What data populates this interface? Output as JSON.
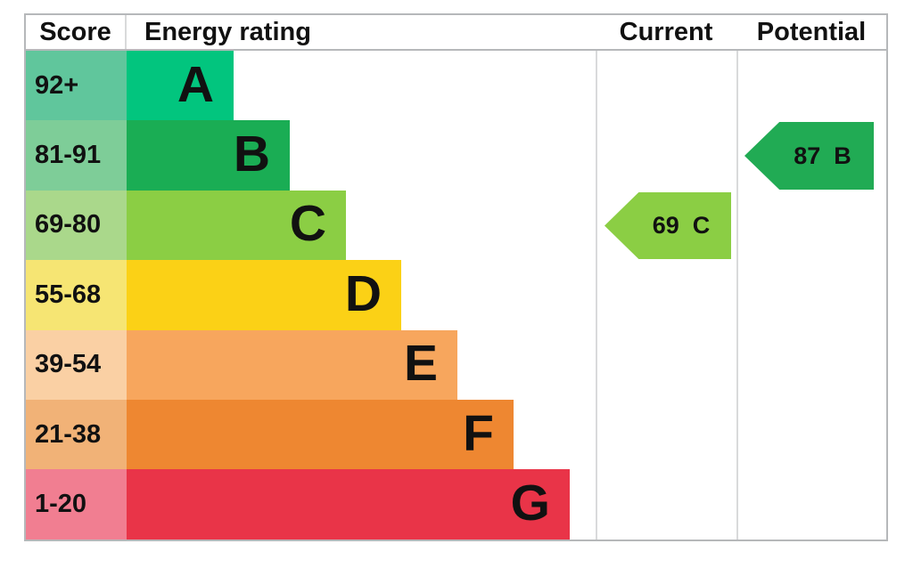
{
  "header": {
    "score": "Score",
    "energy_rating": "Energy rating",
    "current": "Current",
    "potential": "Potential"
  },
  "rows": [
    {
      "score": "92+",
      "letter": "A",
      "cell_color": "#60c69c",
      "band_color": "#02c57e",
      "band_width": 120
    },
    {
      "score": "81-91",
      "letter": "B",
      "cell_color": "#7ecd98",
      "band_color": "#1aad54",
      "band_width": 183
    },
    {
      "score": "69-80",
      "letter": "C",
      "cell_color": "#aad88b",
      "band_color": "#8bce44",
      "band_width": 246
    },
    {
      "score": "55-68",
      "letter": "D",
      "cell_color": "#f6e573",
      "band_color": "#fbd116",
      "band_width": 308
    },
    {
      "score": "39-54",
      "letter": "E",
      "cell_color": "#fad0a4",
      "band_color": "#f7a65d",
      "band_width": 371
    },
    {
      "score": "21-38",
      "letter": "F",
      "cell_color": "#f1b277",
      "band_color": "#ee8731",
      "band_width": 434
    },
    {
      "score": "1-20",
      "letter": "G",
      "cell_color": "#f17e91",
      "band_color": "#e93448",
      "band_width": 497
    }
  ],
  "current": {
    "value": "69",
    "letter": "C",
    "color": "#8bce44"
  },
  "potential": {
    "value": "87",
    "letter": "B",
    "color": "#21ab54"
  },
  "colors": {
    "border_gray": "#b6b8ba",
    "divider_gray": "#d9dadb",
    "text_black": "#111111",
    "background": "#ffffff"
  },
  "chart_data": {
    "type": "bar",
    "title": "EPC energy rating chart",
    "orientation": "horizontal",
    "categories": [
      "A",
      "B",
      "C",
      "D",
      "E",
      "F",
      "G"
    ],
    "score_ranges": [
      "92+",
      "81-91",
      "69-80",
      "55-68",
      "39-54",
      "21-38",
      "1-20"
    ],
    "series": [
      {
        "name": "band_relative_length",
        "values": [
          1,
          2,
          3,
          4,
          5,
          6,
          7
        ]
      }
    ],
    "band_colors": [
      "#02c57e",
      "#1aad54",
      "#8bce44",
      "#fbd116",
      "#f7a65d",
      "#ee8731",
      "#e93448"
    ],
    "columns": [
      "Score",
      "Energy rating",
      "Current",
      "Potential"
    ],
    "markers": [
      {
        "name": "Current",
        "score": 69,
        "band": "C",
        "color": "#8bce44"
      },
      {
        "name": "Potential",
        "score": 87,
        "band": "B",
        "color": "#21ab54"
      }
    ],
    "grid": false,
    "legend_position": "none"
  }
}
